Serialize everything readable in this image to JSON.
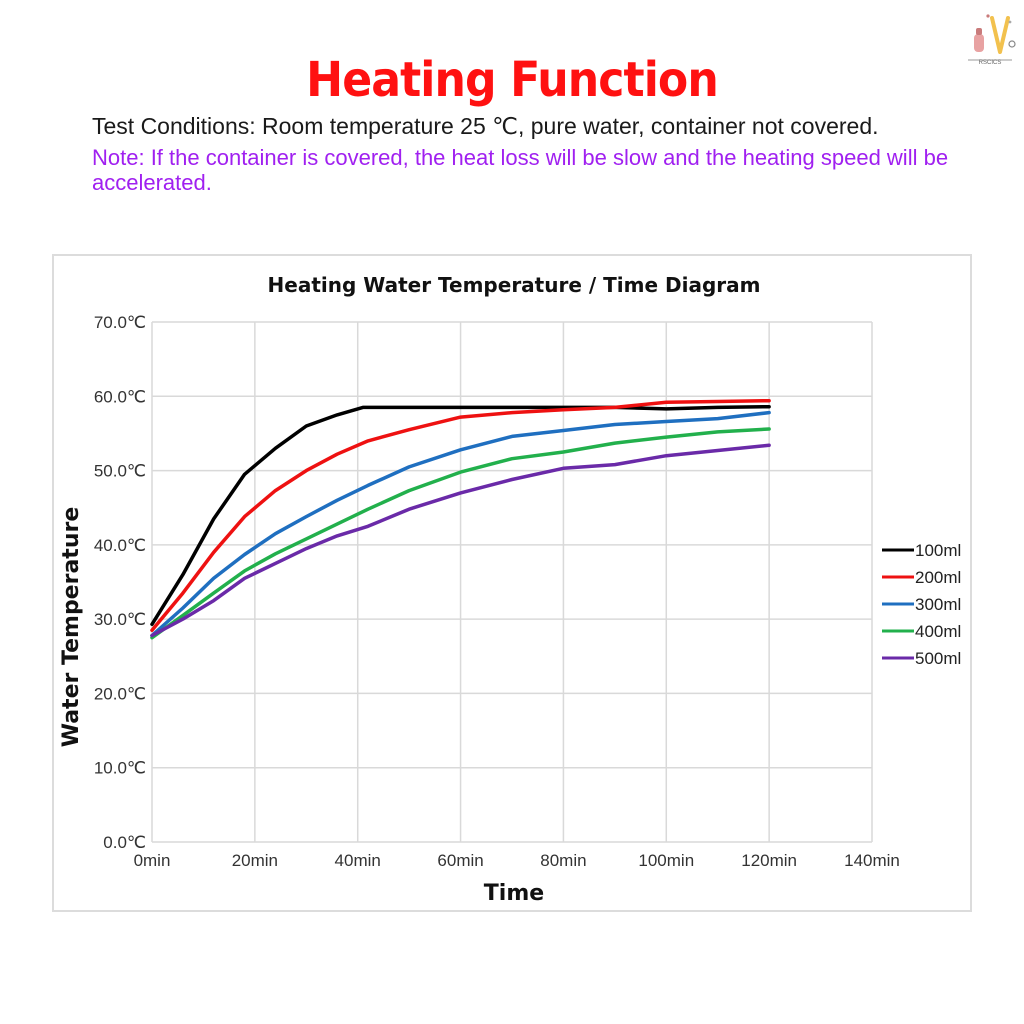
{
  "header": {
    "title": "Heating Function",
    "conditions": "Test Conditions: Room temperature 25 ℃, pure water, container not covered.",
    "note": "Note: If the container is covered, the heat loss will be slow and the heating speed will be accelerated."
  },
  "logo": {
    "icon": "brand-logo-icon",
    "text": "RSCICS"
  },
  "colors": {
    "title": "#ff1111",
    "note": "#a020f0",
    "grid": "#d9d9d9"
  },
  "chart_data": {
    "type": "line",
    "title": "Heating Water Temperature / Time Diagram",
    "xlabel": "Time",
    "ylabel": "Water Temperature",
    "xlim": [
      0,
      140
    ],
    "ylim": [
      0,
      70
    ],
    "x_ticks": [
      0,
      20,
      40,
      60,
      80,
      100,
      120,
      140
    ],
    "x_tick_labels": [
      "0min",
      "20min",
      "40min",
      "60min",
      "80min",
      "100min",
      "120min",
      "140min"
    ],
    "y_ticks": [
      0,
      10,
      20,
      30,
      40,
      50,
      60,
      70
    ],
    "y_tick_labels": [
      "0.0℃",
      "10.0℃",
      "20.0℃",
      "30.0℃",
      "40.0℃",
      "50.0℃",
      "60.0℃",
      "70.0℃"
    ],
    "grid": true,
    "legend_position": "right",
    "series": [
      {
        "name": "100ml",
        "color": "#000000",
        "x": [
          0,
          6,
          12,
          18,
          24,
          30,
          36,
          41,
          50,
          60,
          70,
          80,
          90,
          100,
          110,
          120
        ],
        "y": [
          29.3,
          36,
          43.5,
          49.5,
          53,
          56,
          57.5,
          58.5,
          58.5,
          58.5,
          58.5,
          58.5,
          58.5,
          58.3,
          58.5,
          58.6
        ]
      },
      {
        "name": "200ml",
        "color": "#ee1111",
        "x": [
          0,
          6,
          12,
          18,
          24,
          30,
          36,
          42,
          50,
          60,
          70,
          80,
          90,
          100,
          110,
          120
        ],
        "y": [
          28.5,
          33.5,
          39,
          43.8,
          47.3,
          50,
          52.2,
          54,
          55.5,
          57.2,
          57.8,
          58.2,
          58.5,
          59.2,
          59.3,
          59.4
        ]
      },
      {
        "name": "300ml",
        "color": "#1f6fc0",
        "x": [
          0,
          6,
          12,
          18,
          24,
          30,
          36,
          42,
          50,
          60,
          70,
          80,
          90,
          100,
          110,
          120
        ],
        "y": [
          27.8,
          31.5,
          35.5,
          38.7,
          41.5,
          43.8,
          46,
          48,
          50.5,
          52.8,
          54.6,
          55.4,
          56.2,
          56.6,
          57,
          57.8
        ]
      },
      {
        "name": "400ml",
        "color": "#22b04c",
        "x": [
          0,
          6,
          12,
          18,
          24,
          30,
          36,
          42,
          50,
          60,
          70,
          80,
          90,
          100,
          110,
          120
        ],
        "y": [
          27.5,
          30.5,
          33.5,
          36.5,
          38.8,
          40.8,
          42.8,
          44.8,
          47.3,
          49.8,
          51.6,
          52.5,
          53.7,
          54.5,
          55.2,
          55.6
        ]
      },
      {
        "name": "500ml",
        "color": "#6a2aa8",
        "x": [
          0,
          6,
          12,
          18,
          24,
          30,
          36,
          42,
          50,
          60,
          70,
          80,
          90,
          100,
          110,
          120
        ],
        "y": [
          27.8,
          30,
          32.5,
          35.5,
          37.5,
          39.5,
          41.2,
          42.5,
          44.8,
          47,
          48.8,
          50.3,
          50.8,
          52,
          52.7,
          53.4
        ]
      }
    ]
  }
}
